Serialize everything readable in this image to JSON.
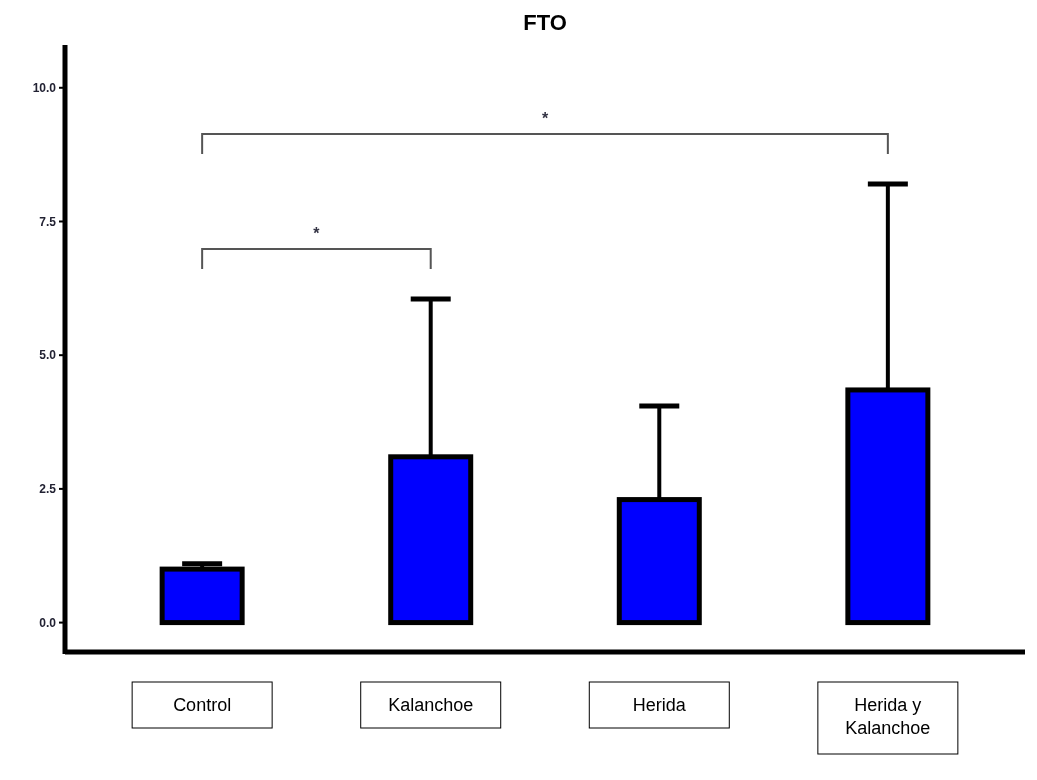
{
  "chart_data": {
    "type": "bar",
    "title": "FTO",
    "categories": [
      "Control",
      "Kalanchoe",
      "Herida",
      "Herida y Kalanchoe"
    ],
    "values": [
      1.0,
      3.1,
      2.3,
      4.35
    ],
    "errors": [
      [
        1.0,
        1.1
      ],
      [
        3.1,
        6.05
      ],
      [
        2.3,
        4.05
      ],
      [
        4.35,
        8.2
      ]
    ],
    "color": "#0000ff",
    "ylim": [
      -0.55,
      10.8
    ],
    "yticks": [
      {
        "value": 0,
        "label": "0.0"
      },
      {
        "value": 2.5,
        "label": "2.5"
      },
      {
        "value": 5,
        "label": "5.0"
      },
      {
        "value": 7.5,
        "label": "7.5"
      },
      {
        "value": 10,
        "label": "10.0"
      }
    ],
    "annotations": [
      "*",
      "*"
    ],
    "grid": false
  }
}
